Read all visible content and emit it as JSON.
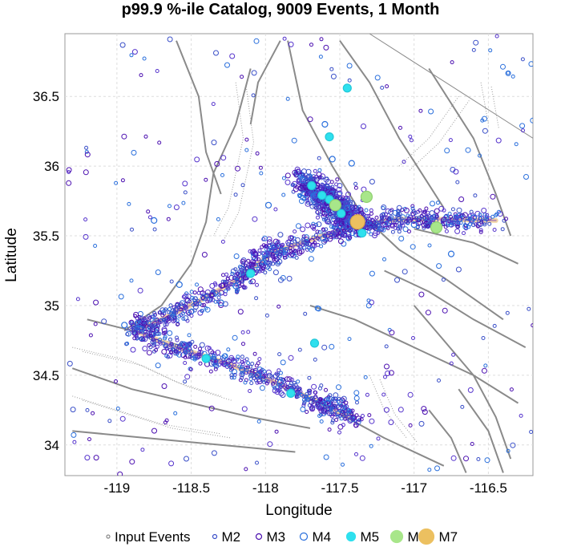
{
  "chart_data": {
    "type": "scatter",
    "title": "p99.9 %-ile Catalog, 9009 Events, 1 Month",
    "xlabel": "Longitude",
    "ylabel": "Latitude",
    "xlim": [
      -119.35,
      -116.2
    ],
    "ylim": [
      33.78,
      36.95
    ],
    "x_ticks": [
      {
        "value": -119,
        "label": "-119"
      },
      {
        "value": -118.5,
        "label": "-118.5"
      },
      {
        "value": -118,
        "label": "-118"
      },
      {
        "value": -117.5,
        "label": "-117.5"
      },
      {
        "value": -117,
        "label": "-117"
      },
      {
        "value": -116.5,
        "label": "-116.5"
      }
    ],
    "y_ticks": [
      {
        "value": 34,
        "label": "34"
      },
      {
        "value": 34.5,
        "label": "34.5"
      },
      {
        "value": 35,
        "label": "35"
      },
      {
        "value": 35.5,
        "label": "35.5"
      },
      {
        "value": 36,
        "label": "36"
      },
      {
        "value": 36.5,
        "label": "36.5"
      }
    ],
    "grid": true,
    "legend_position": "bottom",
    "legend": [
      {
        "label": "Input Events",
        "color": "#888888",
        "style": "hollow",
        "size": 2
      },
      {
        "label": "M2",
        "color": "#3a4fc8",
        "style": "hollow",
        "size": 2.5
      },
      {
        "label": "M3",
        "color": "#4b0fb0",
        "style": "hollow",
        "size": 3.5
      },
      {
        "label": "M4",
        "color": "#2a6fdc",
        "style": "hollow",
        "size": 4.5
      },
      {
        "label": "M5",
        "color": "#2ee0ee",
        "style": "filled",
        "size": 5.5
      },
      {
        "label": "M6",
        "color": "#a8e68a",
        "style": "filled",
        "size": 7.5
      },
      {
        "label": "M7",
        "color": "#ecc060",
        "style": "filled",
        "size": 9.5
      }
    ],
    "rupture_traces": [
      {
        "name": "northern",
        "points": [
          [
            -118.88,
            34.82
          ],
          [
            -118.7,
            34.9
          ],
          [
            -118.45,
            35.03
          ],
          [
            -118.2,
            35.18
          ],
          [
            -118.05,
            35.3
          ],
          [
            -117.95,
            35.38
          ],
          [
            -117.7,
            35.47
          ],
          [
            -117.5,
            35.54
          ],
          [
            -117.3,
            35.59
          ],
          [
            -117.1,
            35.62
          ],
          [
            -116.85,
            35.62
          ],
          [
            -116.45,
            35.61
          ]
        ]
      },
      {
        "name": "southern",
        "points": [
          [
            -118.88,
            34.82
          ],
          [
            -118.6,
            34.7
          ],
          [
            -118.3,
            34.6
          ],
          [
            -118.0,
            34.48
          ],
          [
            -117.75,
            34.36
          ],
          [
            -117.55,
            34.26
          ],
          [
            -117.42,
            34.21
          ]
        ]
      }
    ],
    "events": [
      {
        "lon": -117.38,
        "lat": 35.6,
        "mag": 7
      },
      {
        "lon": -117.32,
        "lat": 35.78,
        "mag": 6
      },
      {
        "lon": -116.85,
        "lat": 35.56,
        "mag": 6
      },
      {
        "lon": -117.53,
        "lat": 35.72,
        "mag": 6
      },
      {
        "lon": -117.45,
        "lat": 36.56,
        "mag": 5
      },
      {
        "lon": -117.57,
        "lat": 36.21,
        "mag": 5
      },
      {
        "lon": -117.69,
        "lat": 35.86,
        "mag": 5
      },
      {
        "lon": -117.62,
        "lat": 35.79,
        "mag": 5
      },
      {
        "lon": -117.57,
        "lat": 35.76,
        "mag": 5
      },
      {
        "lon": -117.49,
        "lat": 35.66,
        "mag": 5
      },
      {
        "lon": -117.67,
        "lat": 34.73,
        "mag": 5
      },
      {
        "lon": -118.1,
        "lat": 35.23,
        "mag": 5
      },
      {
        "lon": -118.4,
        "lat": 34.62,
        "mag": 5
      },
      {
        "lon": -117.83,
        "lat": 34.37,
        "mag": 5
      },
      {
        "lon": -117.35,
        "lat": 35.52,
        "mag": 5
      },
      {
        "lon": -118.75,
        "lat": 35.61,
        "mag": 4
      },
      {
        "lon": -117.66,
        "lat": 35.79,
        "mag": 4
      },
      {
        "lon": -118.2,
        "lat": 35.14,
        "mag": 4
      },
      {
        "lon": -117.42,
        "lat": 36.02,
        "mag": 4
      },
      {
        "lon": -117.0,
        "lat": 35.58,
        "mag": 4
      },
      {
        "lon": -117.9,
        "lat": 34.45,
        "mag": 4
      },
      {
        "lon": -118.55,
        "lat": 34.72,
        "mag": 4
      },
      {
        "lon": -118.95,
        "lat": 34.86,
        "mag": 4
      },
      {
        "lon": -117.55,
        "lat": 36.05,
        "mag": 4
      },
      {
        "lon": -116.6,
        "lat": 35.63,
        "mag": 4
      },
      {
        "lon": -118.3,
        "lat": 35.02,
        "mag": 4
      },
      {
        "lon": -117.58,
        "lat": 34.3,
        "mag": 4
      },
      {
        "lon": -118.05,
        "lat": 34.5,
        "mag": 4
      },
      {
        "lon": -117.75,
        "lat": 35.9,
        "mag": 4
      },
      {
        "lon": -117.45,
        "lat": 35.7,
        "mag": 4
      },
      {
        "lon": -118.58,
        "lat": 35.15,
        "mag": 4
      },
      {
        "lon": -117.98,
        "lat": 35.72,
        "mag": 4
      },
      {
        "lon": -116.75,
        "lat": 35.37,
        "mag": 4
      },
      {
        "lon": -117.6,
        "lat": 36.3,
        "mag": 4
      }
    ]
  }
}
